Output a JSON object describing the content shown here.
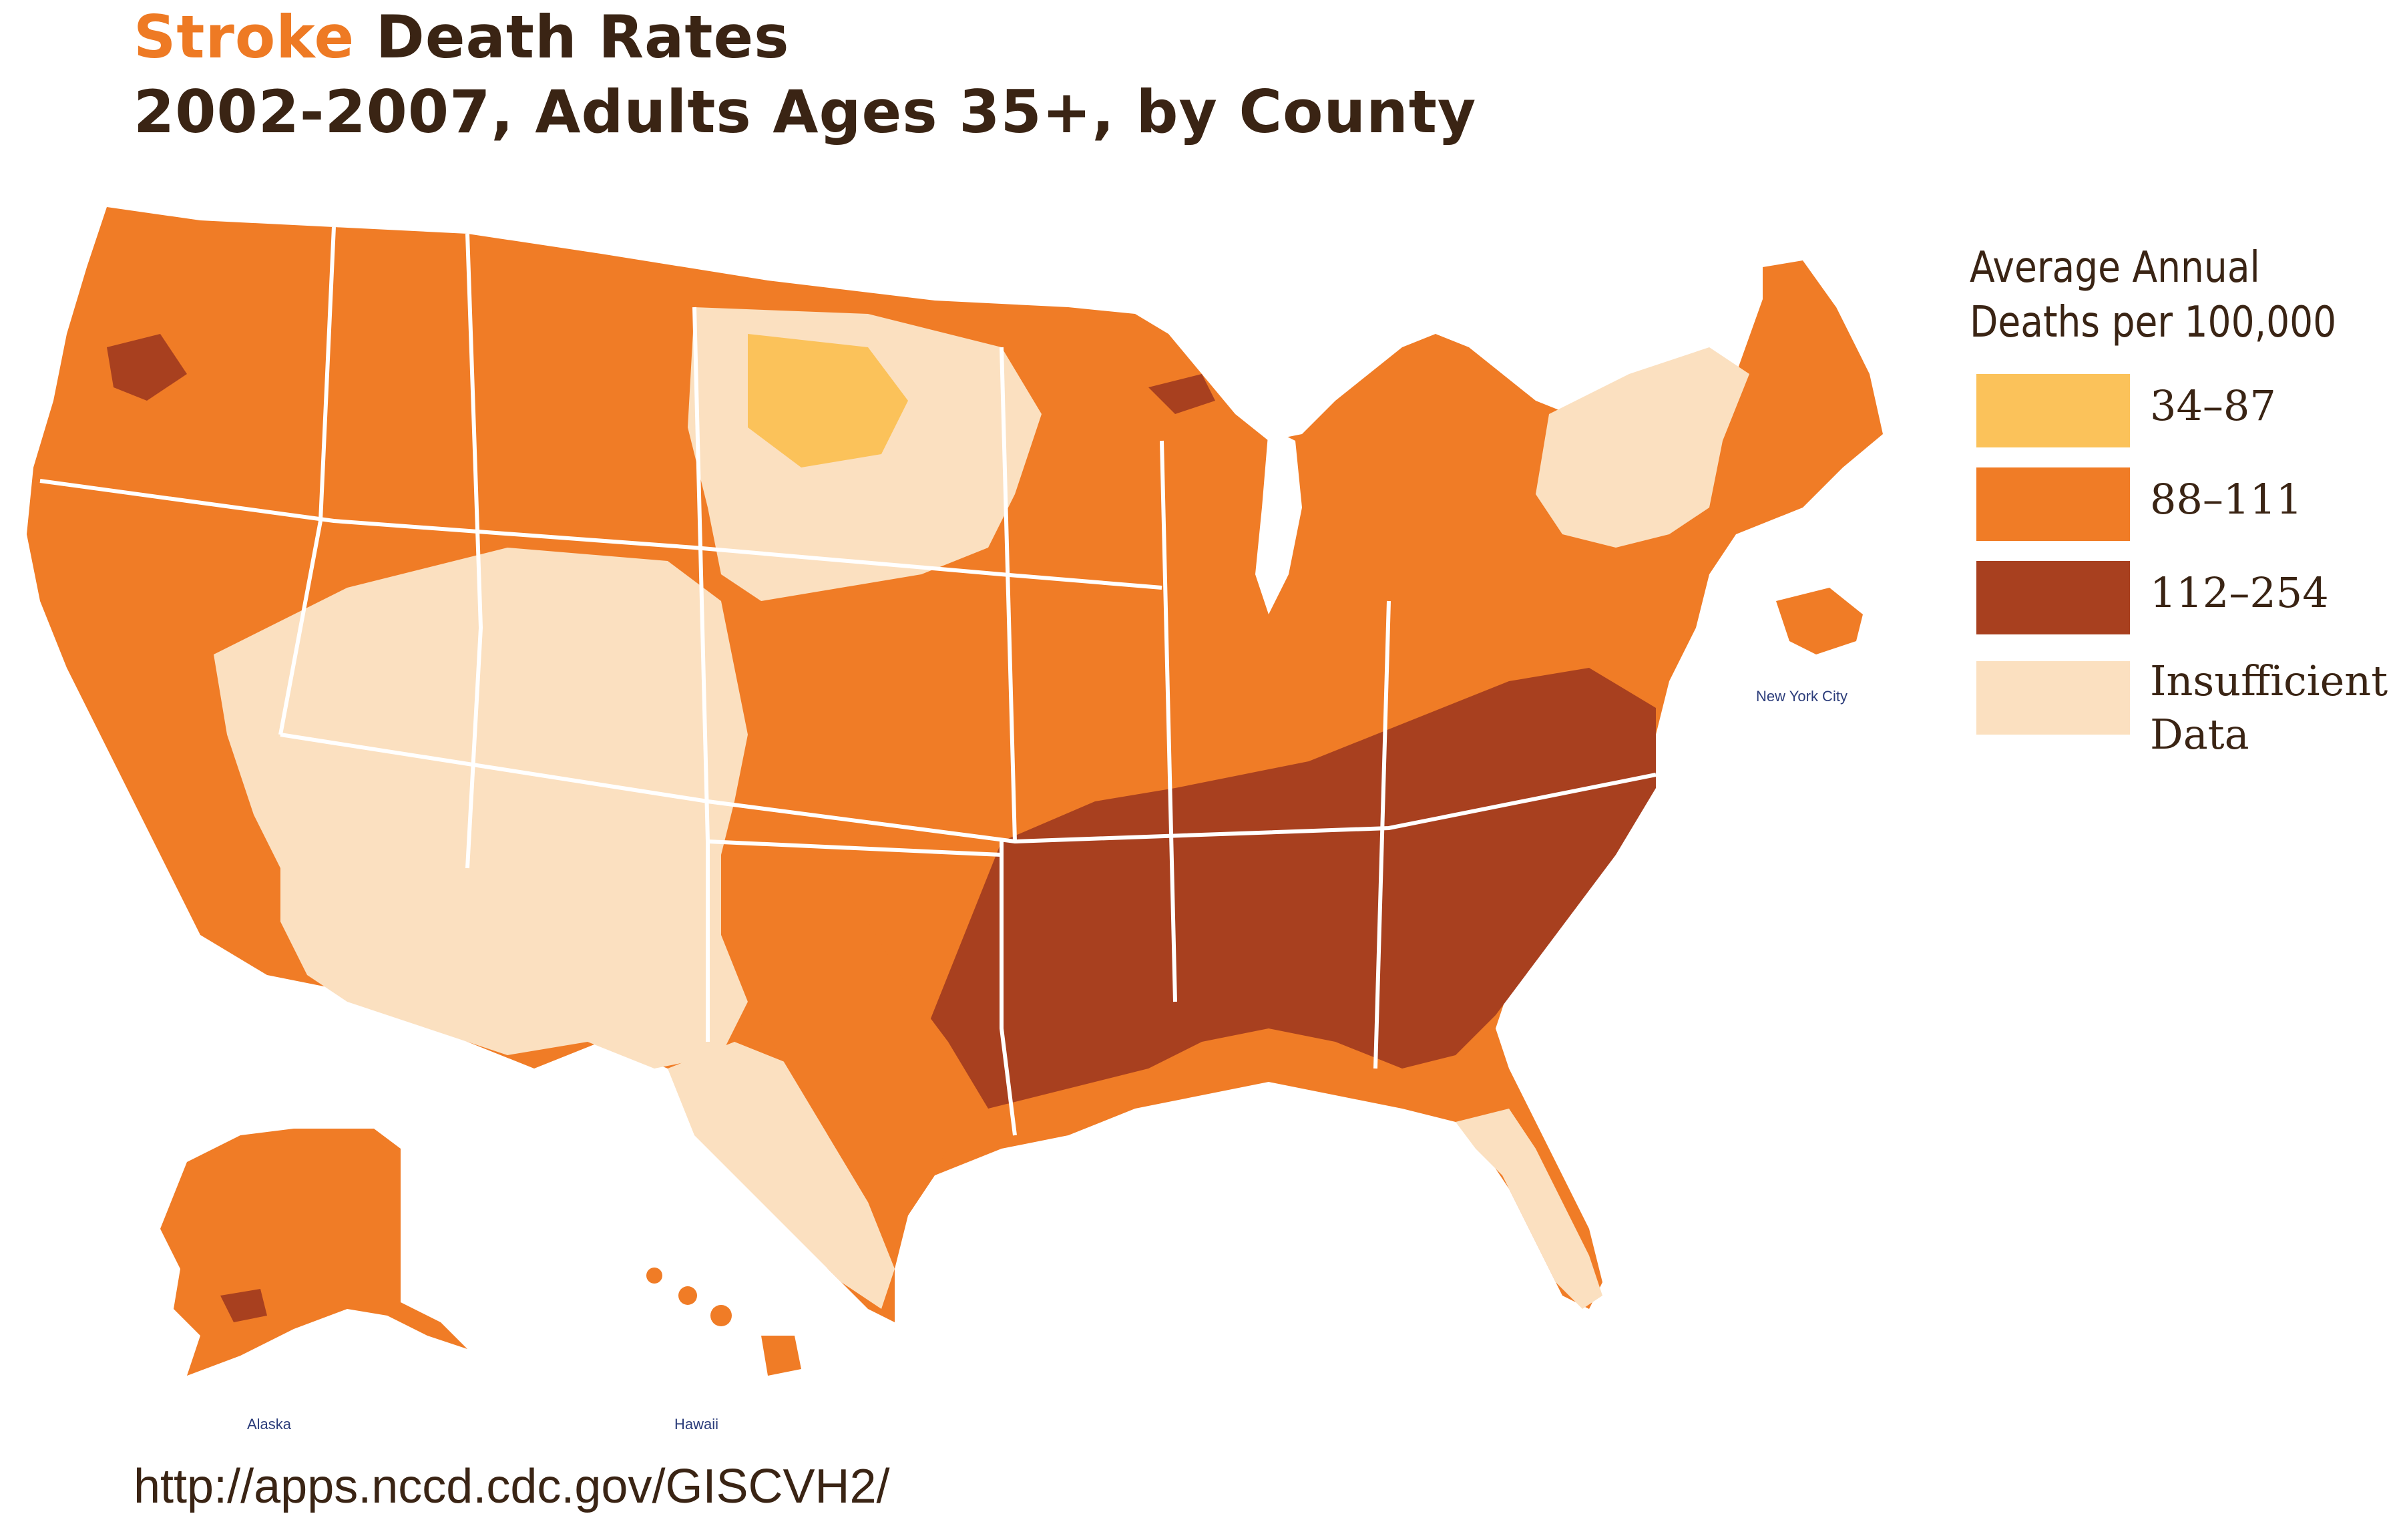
{
  "title": {
    "accent": "Stroke",
    "rest": " Death Rates",
    "subtitle": "2002-2007, Adults Ages 35+, by County"
  },
  "legend": {
    "title_line_1": "Average Annual",
    "title_line_2": "Deaths per 100,000",
    "items": [
      {
        "label": "34–87",
        "color": "#fbc25a",
        "class": "low"
      },
      {
        "label": "88–111",
        "color": "#f07c26",
        "class": "medium"
      },
      {
        "label": "112–254",
        "color": "#a8401f",
        "class": "high"
      },
      {
        "label": "Insufficient Data",
        "color": "#fbe0c0",
        "class": "insufficient"
      }
    ]
  },
  "map": {
    "insets": {
      "alaska_label": "Alaska",
      "hawaii_label": "Hawaii",
      "nyc_label": "New York City"
    },
    "regions": {
      "pacific_northwest": "medium",
      "california": "medium",
      "nevada": "medium",
      "southwest": "insufficient",
      "mountain_plains": "insufficient",
      "northern_plains": "medium",
      "midwest": "medium",
      "great_lakes": "medium",
      "northeast": "insufficient",
      "maine": "medium",
      "texas_west": "insufficient",
      "texas_east": "medium",
      "florida": "insufficient",
      "stroke_belt": "high",
      "alaska": "medium",
      "hawaii": "medium"
    }
  },
  "source": "http://apps.nccd.cdc.gov/GISCVH2/"
}
